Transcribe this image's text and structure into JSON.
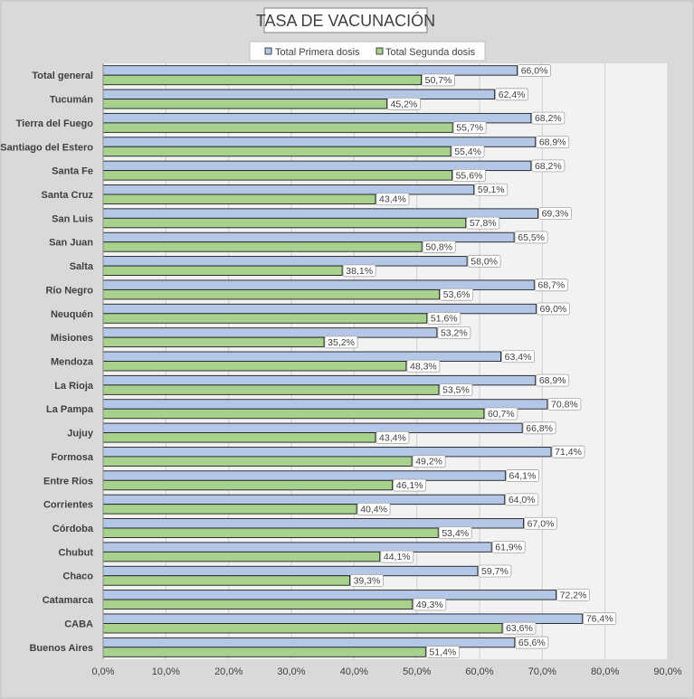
{
  "chart_data": {
    "type": "bar",
    "orientation": "horizontal",
    "title": "TASA DE VACUNACIÓN",
    "categories": [
      "Total general",
      "Tucumán",
      "Tierra del Fuego",
      "Santiago del Estero",
      "Santa Fe",
      "Santa Cruz",
      "San Luis",
      "San Juan",
      "Salta",
      "Río Negro",
      "Neuquén",
      "Misiones",
      "Mendoza",
      "La Rioja",
      "La Pampa",
      "Jujuy",
      "Formosa",
      "Entre Ríos",
      "Corrientes",
      "Córdoba",
      "Chubut",
      "Chaco",
      "Catamarca",
      "CABA",
      "Buenos Aires"
    ],
    "series": [
      {
        "name": "Total Primera dosis",
        "values": [
          66.0,
          62.4,
          68.2,
          68.9,
          68.2,
          59.1,
          69.3,
          65.5,
          58.0,
          68.7,
          69.0,
          53.2,
          63.4,
          68.9,
          70.8,
          66.8,
          71.4,
          64.1,
          64.0,
          67.0,
          61.9,
          59.7,
          72.2,
          76.4,
          65.6
        ],
        "labels": [
          "66,0%",
          "62,4%",
          "68,2%",
          "68,9%",
          "68,2%",
          "59,1%",
          "69,3%",
          "65,5%",
          "58,0%",
          "68,7%",
          "69,0%",
          "53,2%",
          "63,4%",
          "68,9%",
          "70,8%",
          "66,8%",
          "71,4%",
          "64,1%",
          "64,0%",
          "67,0%",
          "61,9%",
          "59,7%",
          "72,2%",
          "76,4%",
          "65,6%"
        ],
        "color": "#b4c7e7"
      },
      {
        "name": "Total Segunda dosis",
        "values": [
          50.7,
          45.2,
          55.7,
          55.4,
          55.6,
          43.4,
          57.8,
          50.8,
          38.1,
          53.6,
          51.6,
          35.2,
          48.3,
          53.5,
          60.7,
          43.4,
          49.2,
          46.1,
          40.4,
          53.4,
          44.1,
          39.3,
          49.3,
          63.6,
          51.4
        ],
        "labels": [
          "50,7%",
          "45,2%",
          "55,7%",
          "55,4%",
          "55,6%",
          "43,4%",
          "57,8%",
          "50,8%",
          "38,1%",
          "53,6%",
          "51,6%",
          "35,2%",
          "48,3%",
          "53,5%",
          "60,7%",
          "43,4%",
          "49,2%",
          "46,1%",
          "40,4%",
          "53,4%",
          "44,1%",
          "39,3%",
          "49,3%",
          "63,6%",
          "51,4%"
        ],
        "color": "#a9d18e"
      }
    ],
    "xlim": [
      0,
      90
    ],
    "xticks": [
      0,
      10,
      20,
      30,
      40,
      50,
      60,
      70,
      80,
      90
    ],
    "xtick_labels": [
      "0,0%",
      "10,0%",
      "20,0%",
      "30,0%",
      "40,0%",
      "50,0%",
      "60,0%",
      "70,0%",
      "80,0%",
      "90,0%"
    ],
    "grid": true,
    "legend": "top",
    "bar_outline": "#1f1f1f"
  }
}
